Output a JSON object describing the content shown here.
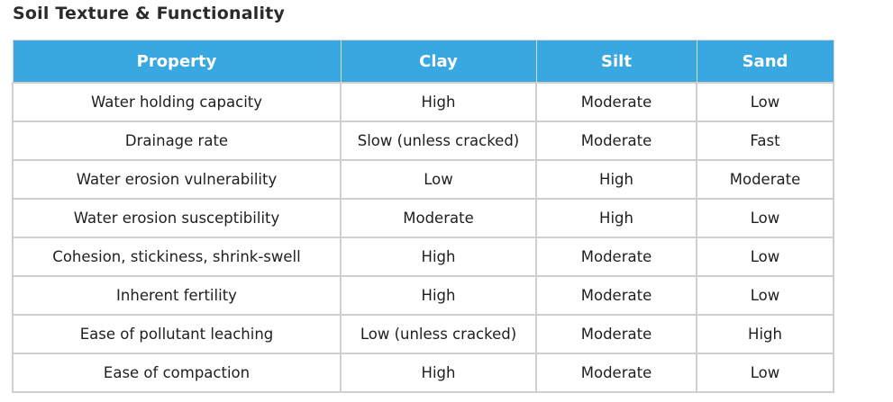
{
  "title": "Soil Texture & Functionality",
  "table": {
    "headers": [
      "Property",
      "Clay",
      "Silt",
      "Sand"
    ],
    "rows": [
      [
        "Water holding capacity",
        "High",
        "Moderate",
        "Low"
      ],
      [
        "Drainage rate",
        "Slow (unless cracked)",
        "Moderate",
        "Fast"
      ],
      [
        "Water erosion vulnerability",
        "Low",
        "High",
        "Moderate"
      ],
      [
        "Water erosion susceptibility",
        "Moderate",
        "High",
        "Low"
      ],
      [
        "Cohesion, stickiness, shrink-swell",
        "High",
        "Moderate",
        "Low"
      ],
      [
        "Inherent fertility",
        "High",
        "Moderate",
        "Low"
      ],
      [
        "Ease of pollutant leaching",
        "Low (unless cracked)",
        "Moderate",
        "High"
      ],
      [
        "Ease of compaction",
        "High",
        "Moderate",
        "Low"
      ]
    ]
  },
  "colors": {
    "header_background": "#3aa8e0",
    "header_text": "#ffffff",
    "grid_lines": "#cfcfcf"
  }
}
